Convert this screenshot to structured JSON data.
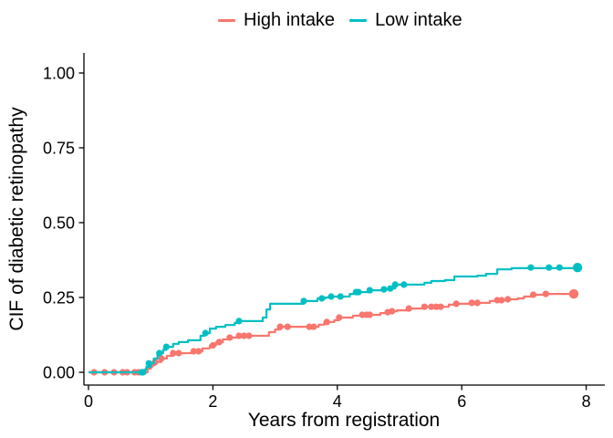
{
  "chart_data": {
    "type": "line",
    "subtype": "step-cumulative-incidence",
    "title": "",
    "xlabel": "Years from registration",
    "ylabel": "CIF of diabetic retinopathy",
    "xlim": [
      0,
      8
    ],
    "ylim": [
      0,
      1
    ],
    "grid": false,
    "legend_position": "top",
    "x_ticks": [
      {
        "value": 0,
        "label": "0"
      },
      {
        "value": 2,
        "label": "2"
      },
      {
        "value": 4,
        "label": "4"
      },
      {
        "value": 6,
        "label": "6"
      },
      {
        "value": 8,
        "label": "8"
      }
    ],
    "y_ticks": [
      {
        "value": 0.0,
        "label": "0.00"
      },
      {
        "value": 0.25,
        "label": "0.25"
      },
      {
        "value": 0.5,
        "label": "0.50"
      },
      {
        "value": 0.75,
        "label": "0.75"
      },
      {
        "value": 1.0,
        "label": "1.00"
      }
    ],
    "series": [
      {
        "id": "high-intake",
        "name": "High intake",
        "color": "#F8766D",
        "points": [
          [
            0,
            0
          ],
          [
            0.95,
            0.012
          ],
          [
            1.0,
            0.024
          ],
          [
            1.07,
            0.034
          ],
          [
            1.17,
            0.046
          ],
          [
            1.26,
            0.055
          ],
          [
            1.36,
            0.064
          ],
          [
            1.69,
            0.07
          ],
          [
            1.83,
            0.08
          ],
          [
            1.95,
            0.09
          ],
          [
            2.05,
            0.101
          ],
          [
            2.16,
            0.11
          ],
          [
            2.27,
            0.116
          ],
          [
            2.4,
            0.122
          ],
          [
            2.9,
            0.134
          ],
          [
            3.0,
            0.143
          ],
          [
            3.08,
            0.152
          ],
          [
            3.7,
            0.159
          ],
          [
            3.79,
            0.168
          ],
          [
            3.95,
            0.174
          ],
          [
            4.03,
            0.183
          ],
          [
            4.25,
            0.189
          ],
          [
            4.4,
            0.192
          ],
          [
            4.69,
            0.198
          ],
          [
            4.81,
            0.201
          ],
          [
            4.88,
            0.204
          ],
          [
            4.96,
            0.207
          ],
          [
            5.15,
            0.213
          ],
          [
            5.4,
            0.219
          ],
          [
            5.79,
            0.226
          ],
          [
            5.91,
            0.229
          ],
          [
            6.16,
            0.232
          ],
          [
            6.45,
            0.238
          ],
          [
            6.57,
            0.241
          ],
          [
            6.74,
            0.244
          ],
          [
            6.9,
            0.247
          ],
          [
            7.0,
            0.253
          ],
          [
            7.15,
            0.259
          ],
          [
            7.35,
            0.262
          ],
          [
            7.8,
            0.262
          ]
        ],
        "markers": [
          [
            0.09,
            0
          ],
          [
            0.26,
            0
          ],
          [
            0.41,
            0
          ],
          [
            0.55,
            0
          ],
          [
            0.62,
            0
          ],
          [
            0.74,
            0
          ],
          [
            0.8,
            0
          ],
          [
            1.0,
            0.024
          ],
          [
            1.07,
            0.034
          ],
          [
            1.17,
            0.046
          ],
          [
            1.36,
            0.064
          ],
          [
            1.45,
            0.064
          ],
          [
            1.69,
            0.07
          ],
          [
            1.77,
            0.07
          ],
          [
            2.0,
            0.09
          ],
          [
            2.1,
            0.101
          ],
          [
            2.27,
            0.116
          ],
          [
            2.42,
            0.122
          ],
          [
            2.5,
            0.122
          ],
          [
            2.58,
            0.122
          ],
          [
            3.08,
            0.152
          ],
          [
            3.2,
            0.152
          ],
          [
            3.55,
            0.152
          ],
          [
            3.62,
            0.152
          ],
          [
            3.83,
            0.168
          ],
          [
            4.03,
            0.183
          ],
          [
            4.4,
            0.192
          ],
          [
            4.47,
            0.192
          ],
          [
            4.52,
            0.192
          ],
          [
            4.81,
            0.201
          ],
          [
            4.88,
            0.204
          ],
          [
            5.15,
            0.213
          ],
          [
            5.4,
            0.219
          ],
          [
            5.51,
            0.219
          ],
          [
            5.59,
            0.219
          ],
          [
            5.66,
            0.219
          ],
          [
            5.91,
            0.229
          ],
          [
            6.16,
            0.232
          ],
          [
            6.25,
            0.232
          ],
          [
            6.57,
            0.241
          ],
          [
            6.64,
            0.241
          ],
          [
            6.74,
            0.244
          ],
          [
            7.15,
            0.259
          ],
          [
            7.35,
            0.262
          ]
        ],
        "end_marker": [
          7.8,
          0.262
        ],
        "final_value": 0.26
      },
      {
        "id": "low-intake",
        "name": "Low intake",
        "color": "#00BFC4",
        "points": [
          [
            0,
            0
          ],
          [
            0.9,
            0.009
          ],
          [
            0.93,
            0.018
          ],
          [
            1.0,
            0.03
          ],
          [
            1.05,
            0.046
          ],
          [
            1.11,
            0.061
          ],
          [
            1.14,
            0.064
          ],
          [
            1.2,
            0.075
          ],
          [
            1.25,
            0.085
          ],
          [
            1.36,
            0.095
          ],
          [
            1.45,
            0.101
          ],
          [
            1.6,
            0.107
          ],
          [
            1.8,
            0.122
          ],
          [
            1.87,
            0.131
          ],
          [
            1.95,
            0.146
          ],
          [
            2.05,
            0.152
          ],
          [
            2.2,
            0.158
          ],
          [
            2.35,
            0.165
          ],
          [
            2.42,
            0.171
          ],
          [
            2.8,
            0.183
          ],
          [
            2.86,
            0.21
          ],
          [
            2.92,
            0.229
          ],
          [
            3.46,
            0.238
          ],
          [
            3.68,
            0.247
          ],
          [
            3.81,
            0.25
          ],
          [
            3.93,
            0.253
          ],
          [
            4.2,
            0.262
          ],
          [
            4.3,
            0.268
          ],
          [
            4.55,
            0.274
          ],
          [
            4.74,
            0.277
          ],
          [
            4.85,
            0.28
          ],
          [
            4.93,
            0.293
          ],
          [
            5.4,
            0.299
          ],
          [
            5.51,
            0.305
          ],
          [
            5.73,
            0.308
          ],
          [
            5.88,
            0.32
          ],
          [
            6.25,
            0.323
          ],
          [
            6.39,
            0.329
          ],
          [
            6.57,
            0.344
          ],
          [
            6.8,
            0.348
          ],
          [
            7.86,
            0.35
          ]
        ],
        "markers": [
          [
            0.85,
            0
          ],
          [
            0.88,
            0
          ],
          [
            0.97,
            0.03
          ],
          [
            1.14,
            0.064
          ],
          [
            1.25,
            0.085
          ],
          [
            1.88,
            0.131
          ],
          [
            2.42,
            0.171
          ],
          [
            3.46,
            0.238
          ],
          [
            3.75,
            0.247
          ],
          [
            3.9,
            0.253
          ],
          [
            4.05,
            0.253
          ],
          [
            4.3,
            0.268
          ],
          [
            4.34,
            0.268
          ],
          [
            4.52,
            0.274
          ],
          [
            4.75,
            0.277
          ],
          [
            4.85,
            0.28
          ],
          [
            4.93,
            0.293
          ],
          [
            5.07,
            0.293
          ],
          [
            7.11,
            0.35
          ],
          [
            7.4,
            0.35
          ],
          [
            7.57,
            0.35
          ]
        ],
        "end_marker": [
          7.86,
          0.35
        ],
        "final_value": 0.35
      }
    ]
  }
}
